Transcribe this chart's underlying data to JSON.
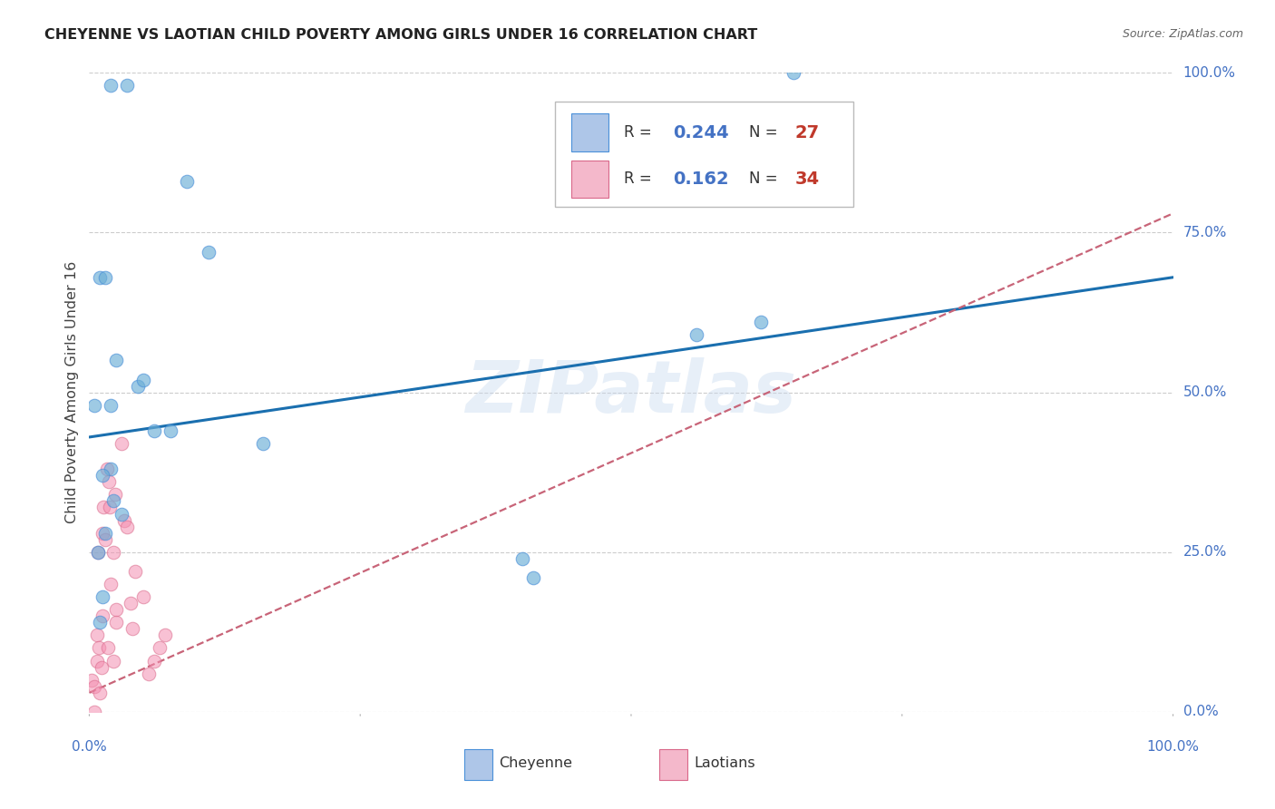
{
  "title": "CHEYENNE VS LAOTIAN CHILD POVERTY AMONG GIRLS UNDER 16 CORRELATION CHART",
  "source": "Source: ZipAtlas.com",
  "ylabel_label": "Child Poverty Among Girls Under 16",
  "cheyenne_R": "0.244",
  "cheyenne_N": "27",
  "laotian_R": "0.162",
  "laotian_N": "34",
  "cheyenne_color": "#6baed6",
  "cheyenne_edge_color": "#4a90d9",
  "laotian_color": "#f48fb1",
  "laotian_edge_color": "#d9688a",
  "cheyenne_line_color": "#1a6faf",
  "laotian_line_color": "#c86478",
  "legend_fill_blue": "#aec6e8",
  "legend_fill_pink": "#f4b8cb",
  "watermark": "ZIPatlas",
  "background_color": "#ffffff",
  "grid_color": "#cccccc",
  "axis_label_color": "#4472c4",
  "cheyenne_x": [
    2.0,
    3.5,
    9.0,
    11.0,
    1.0,
    1.5,
    2.0,
    2.5,
    2.0,
    1.2,
    0.8,
    6.0,
    7.5,
    16.0,
    56.0,
    62.0,
    40.0,
    41.0,
    65.0,
    0.5,
    4.5,
    5.0,
    3.0,
    2.2,
    1.2,
    1.0,
    1.5
  ],
  "cheyenne_y": [
    98.0,
    98.0,
    83.0,
    72.0,
    68.0,
    68.0,
    48.0,
    55.0,
    38.0,
    37.0,
    25.0,
    44.0,
    44.0,
    42.0,
    59.0,
    61.0,
    24.0,
    21.0,
    100.0,
    48.0,
    51.0,
    52.0,
    31.0,
    33.0,
    18.0,
    14.0,
    28.0
  ],
  "laotian_x": [
    0.2,
    0.5,
    0.5,
    0.7,
    0.7,
    0.8,
    0.9,
    1.0,
    1.1,
    1.2,
    1.2,
    1.3,
    1.5,
    1.6,
    1.7,
    1.8,
    1.9,
    2.0,
    2.2,
    2.2,
    2.4,
    2.5,
    2.5,
    3.0,
    3.2,
    3.5,
    3.8,
    4.0,
    4.2,
    5.0,
    5.5,
    6.0,
    6.5,
    7.0
  ],
  "laotian_y": [
    5.0,
    0.0,
    4.0,
    8.0,
    12.0,
    25.0,
    10.0,
    3.0,
    7.0,
    15.0,
    28.0,
    32.0,
    27.0,
    38.0,
    10.0,
    36.0,
    32.0,
    20.0,
    8.0,
    25.0,
    34.0,
    14.0,
    16.0,
    42.0,
    30.0,
    29.0,
    17.0,
    13.0,
    22.0,
    18.0,
    6.0,
    8.0,
    10.0,
    12.0
  ],
  "cheyenne_line_x": [
    0.0,
    100.0
  ],
  "cheyenne_line_y": [
    43.0,
    68.0
  ],
  "laotian_line_x": [
    0.0,
    100.0
  ],
  "laotian_line_y": [
    3.0,
    78.0
  ],
  "xlim": [
    0.0,
    100.0
  ],
  "ylim": [
    0.0,
    100.0
  ],
  "yticks": [
    0.0,
    25.0,
    50.0,
    75.0,
    100.0
  ],
  "ytick_labels": [
    "0.0%",
    "25.0%",
    "50.0%",
    "75.0%",
    "100.0%"
  ],
  "xtick_labels_show": [
    "0.0%",
    "100.0%"
  ],
  "marker_size": 110
}
